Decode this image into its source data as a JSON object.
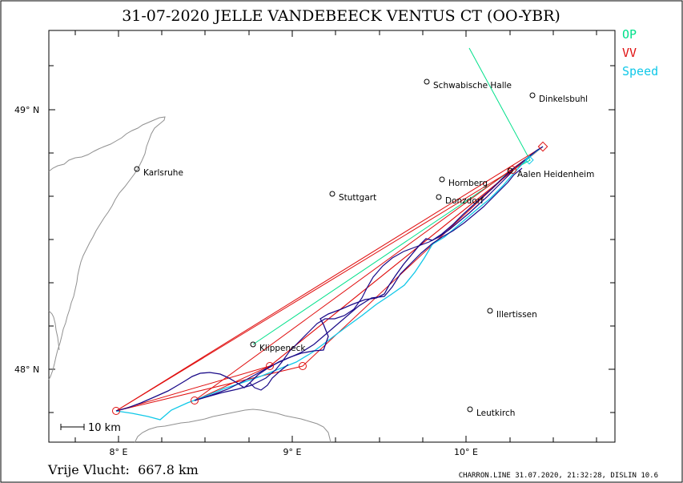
{
  "title": "31-07-2020   JELLE VANDEBEECK   VENTUS CT (OO-YBR)",
  "legend": [
    {
      "label": "OP",
      "color": "#00e08a"
    },
    {
      "label": "VV",
      "color": "#e01010"
    },
    {
      "label": "Speed",
      "color": "#10c8e8"
    }
  ],
  "axes": {
    "lat_labels": [
      "49° N",
      "48° N"
    ],
    "lon_labels": [
      "8° E",
      "9° E",
      "10° E"
    ]
  },
  "cities": [
    {
      "name": "Schwabische Halle"
    },
    {
      "name": "Dinkelsbuhl"
    },
    {
      "name": "Karlsruhe"
    },
    {
      "name": "Stuttgart"
    },
    {
      "name": "Hornberg"
    },
    {
      "name": "Donzdorf"
    },
    {
      "name": "Aalen Heidenheim"
    },
    {
      "name": "Illertissen"
    },
    {
      "name": "Klippeneck"
    },
    {
      "name": "Leutkirch"
    }
  ],
  "scale_bar": "10 km",
  "distance_text": "Vrije Vlucht:  667.8 km",
  "footer": "CHARRON.LINE 31.07.2020, 21:32:28, DISLIN 10.6",
  "colors": {
    "track": "#1a0a88",
    "border": "#909090",
    "frame": "#000000"
  }
}
